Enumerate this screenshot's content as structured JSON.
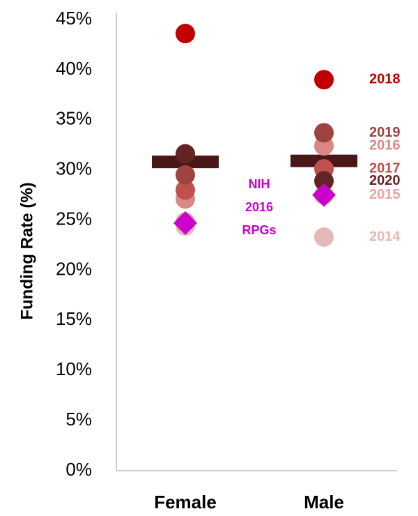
{
  "chart_data": {
    "type": "strip",
    "y_label": "Funding Rate (%)",
    "categories": [
      "Female",
      "Male"
    ],
    "ylim": [
      0,
      45
    ],
    "yticks": [
      {
        "value": 0,
        "label": "0%"
      },
      {
        "value": 5,
        "label": "5%"
      },
      {
        "value": 10,
        "label": "10%"
      },
      {
        "value": 15,
        "label": "15%"
      },
      {
        "value": 20,
        "label": "20%"
      },
      {
        "value": 25,
        "label": "25%"
      },
      {
        "value": 30,
        "label": "30%"
      },
      {
        "value": 35,
        "label": "35%"
      },
      {
        "value": 40,
        "label": "40%"
      },
      {
        "value": 45,
        "label": "45%"
      }
    ],
    "mean_values": [
      30.8,
      30.9
    ],
    "mean_color": "#4a1717",
    "series": [
      {
        "name": "2014",
        "color": "#e6b9b8",
        "marker": "circle",
        "values": [
          24.4,
          23.3
        ]
      },
      {
        "name": "2015",
        "color": "#e8a5a3",
        "marker": "circle",
        "values": [
          24.8,
          27.5
        ]
      },
      {
        "name": "2016",
        "color": "#d98886",
        "marker": "circle",
        "values": [
          27.1,
          32.4
        ]
      },
      {
        "name": "2017",
        "color": "#c0504d",
        "marker": "circle",
        "values": [
          28.0,
          30.1
        ]
      },
      {
        "name": "2019",
        "color": "#9e4340",
        "marker": "circle",
        "values": [
          29.5,
          33.7
        ]
      },
      {
        "name": "2020",
        "color": "#632423",
        "marker": "circle",
        "values": [
          31.6,
          28.9
        ]
      },
      {
        "name": "2018",
        "color": "#c00000",
        "marker": "circle",
        "values": [
          43.6,
          39.0
        ]
      },
      {
        "name": "NIH 2016 RPGs",
        "color": "#cc00cc",
        "marker": "diamond",
        "values": [
          24.7,
          27.5
        ]
      }
    ]
  }
}
